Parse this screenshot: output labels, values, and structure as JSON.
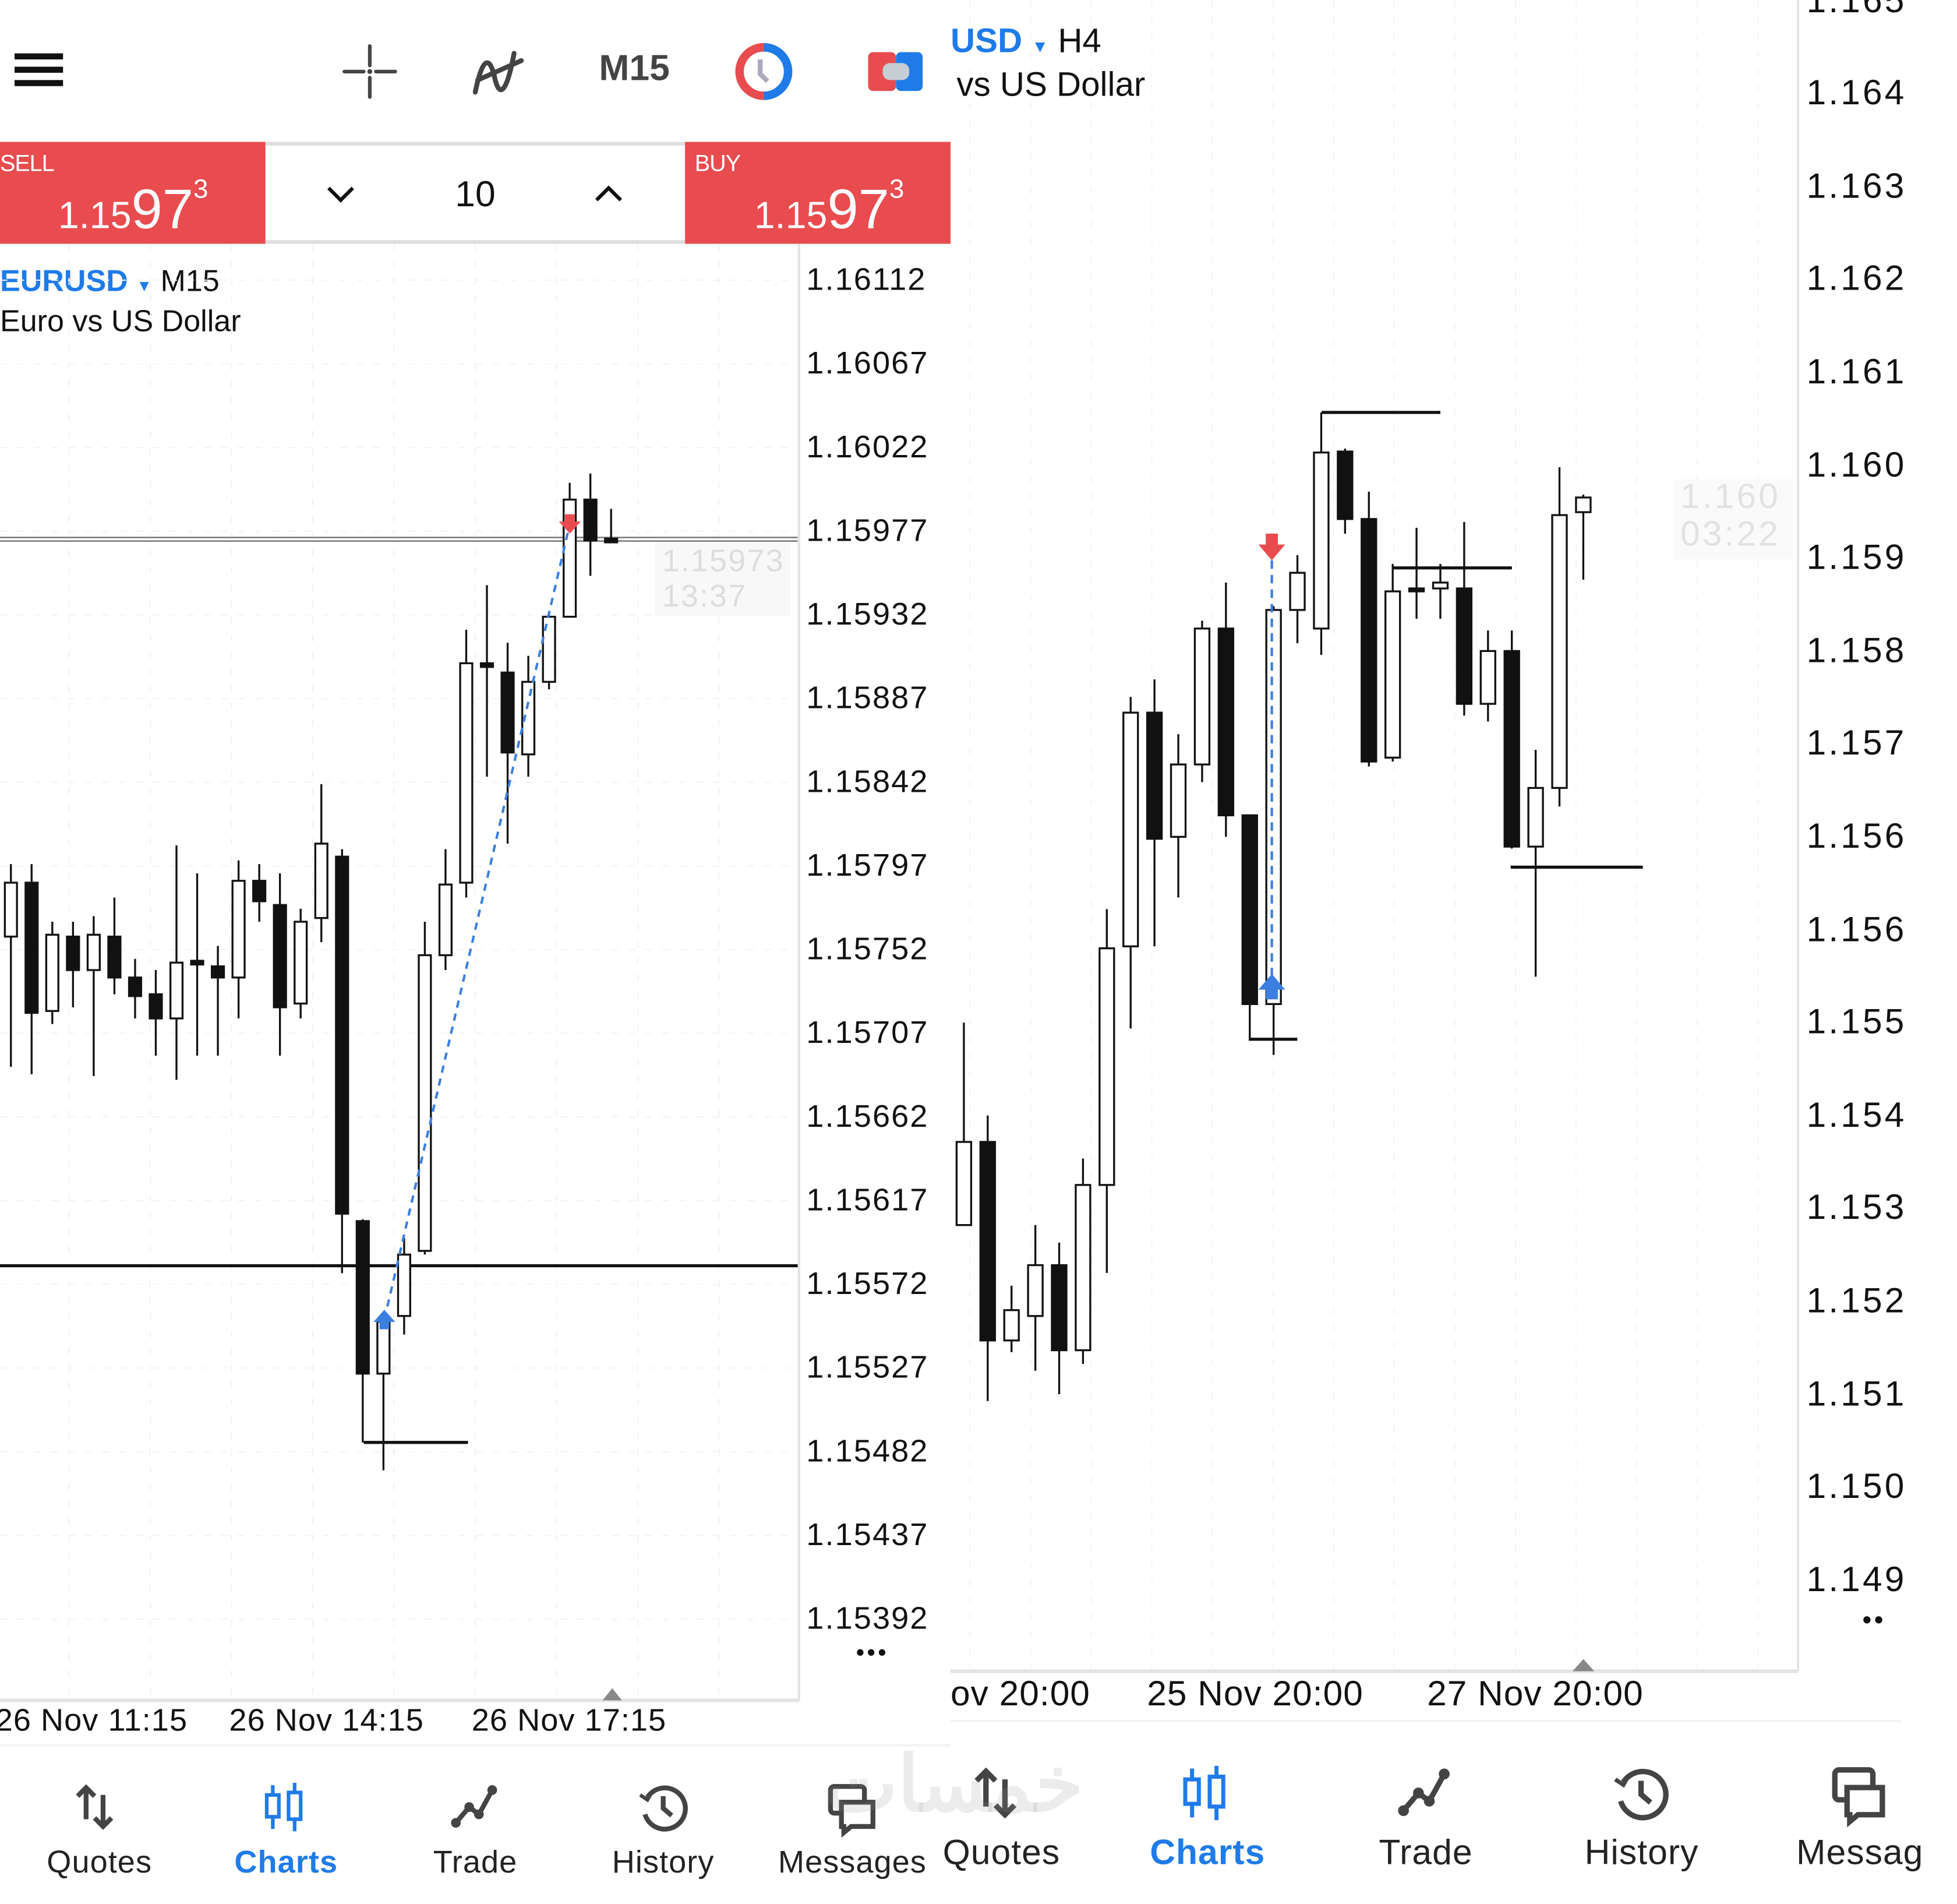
{
  "left": {
    "toolbar": {
      "menu_icon": "hamburger-menu-icon",
      "crosshair_icon": "crosshair-icon",
      "indicators_icon": "indicators-icon",
      "timeframe": "M15",
      "clock_icon": "trade-clock-icon",
      "oneclick_icon": "one-click-trading-icon"
    },
    "trade_panel": {
      "sell_label": "SELL",
      "sell_price_prefix": "1.15",
      "sell_price_big": "97",
      "sell_price_sup": "3",
      "buy_label": "BUY",
      "buy_price_prefix": "1.15",
      "buy_price_big": "97",
      "buy_price_sup": "3",
      "lot_value": "10"
    },
    "chart": {
      "symbol": "EURUSD",
      "timeframe": "M15",
      "description": "Euro vs US Dollar",
      "price_labels": [
        "1.16112",
        "1.16067",
        "1.16022",
        "1.15977",
        "1.15932",
        "1.15887",
        "1.15842",
        "1.15797",
        "1.15752",
        "1.15707",
        "1.15662",
        "1.15617",
        "1.15572",
        "1.15527",
        "1.15482",
        "1.15437",
        "1.15392"
      ],
      "current_price": "1.15973",
      "current_time": "13:37",
      "date_labels": [
        "26 Nov 11:15",
        "26 Nov 14:15",
        "26 Nov 17:15"
      ],
      "more_label": "•••",
      "levels": {
        "bid_line": 1.15973,
        "horizontal_line": 1.15582,
        "short_line": 1.15487
      },
      "candles_ohlc": [
        [
          1.15759,
          1.15798,
          1.15689,
          1.15788
        ],
        [
          1.15788,
          1.15798,
          1.15685,
          1.15718
        ],
        [
          1.15719,
          1.15767,
          1.15712,
          1.1576
        ],
        [
          1.15759,
          1.15767,
          1.15721,
          1.15741
        ],
        [
          1.15741,
          1.1577,
          1.15684,
          1.1576
        ],
        [
          1.15759,
          1.1578,
          1.15728,
          1.15737
        ],
        [
          1.15737,
          1.15747,
          1.15715,
          1.15727
        ],
        [
          1.15728,
          1.15741,
          1.15695,
          1.15715
        ],
        [
          1.15715,
          1.15808,
          1.15682,
          1.15745
        ],
        [
          1.15746,
          1.15793,
          1.15695,
          1.15744
        ],
        [
          1.15743,
          1.15754,
          1.15695,
          1.15737
        ],
        [
          1.15737,
          1.158,
          1.15715,
          1.15789
        ],
        [
          1.15789,
          1.15798,
          1.15767,
          1.15778
        ],
        [
          1.15776,
          1.15793,
          1.15695,
          1.15721
        ],
        [
          1.15723,
          1.15774,
          1.15715,
          1.15767
        ],
        [
          1.15769,
          1.15841,
          1.15756,
          1.15809
        ],
        [
          1.15802,
          1.15806,
          1.15578,
          1.1561
        ],
        [
          1.15606,
          1.15607,
          1.15487,
          1.15524
        ],
        [
          1.15524,
          1.15555,
          1.15472,
          1.15552
        ],
        [
          1.15555,
          1.15597,
          1.15545,
          1.15588
        ],
        [
          1.1559,
          1.15767,
          1.15588,
          1.15749
        ],
        [
          1.15749,
          1.15806,
          1.15741,
          1.15787
        ],
        [
          1.15788,
          1.15924,
          1.1578,
          1.15906
        ],
        [
          1.15906,
          1.15948,
          1.15845,
          1.15904
        ],
        [
          1.15901,
          1.15917,
          1.15809,
          1.15858
        ],
        [
          1.15857,
          1.1591,
          1.15845,
          1.15896
        ],
        [
          1.15896,
          1.15933,
          1.15892,
          1.15931
        ],
        [
          1.15931,
          1.16003,
          1.15931,
          1.15994
        ],
        [
          1.15994,
          1.16008,
          1.15953,
          1.15972
        ],
        [
          1.15973,
          1.15989,
          1.15971,
          1.15971
        ]
      ]
    },
    "nav": [
      {
        "label": "Quotes",
        "icon": "quotes-arrows-icon",
        "active": false
      },
      {
        "label": "Charts",
        "icon": "charts-candles-icon",
        "active": true
      },
      {
        "label": "Trade",
        "icon": "trade-line-icon",
        "active": false
      },
      {
        "label": "History",
        "icon": "history-clock-icon",
        "active": false
      },
      {
        "label": "Messages",
        "icon": "messages-bubbles-icon",
        "active": false
      }
    ]
  },
  "right": {
    "chart": {
      "symbol": "USD",
      "timeframe": "H4",
      "description": "vs US Dollar",
      "price_labels": [
        "1.165",
        "1.164",
        "1.163",
        "1.162",
        "1.161",
        "1.160",
        "1.159",
        "1.158",
        "1.157",
        "1.156",
        "1.156",
        "1.155",
        "1.154",
        "1.153",
        "1.152",
        "1.151",
        "1.150",
        "1.149"
      ],
      "current_price": "1.160",
      "current_time": "03:22",
      "date_labels": [
        "ov 20:00",
        "25 Nov 20:00",
        "27 Nov 20:00"
      ],
      "more_label": "••",
      "levels": {
        "line_top": 1.16125,
        "line_mid": 1.15966,
        "line_low": 1.1566,
        "line_bottom": 1.15484
      },
      "candles_ohlc": [
        [
          1.15294,
          1.15501,
          1.15294,
          1.15379
        ],
        [
          1.15379,
          1.15406,
          1.15114,
          1.15176
        ],
        [
          1.15176,
          1.15232,
          1.15164,
          1.15207
        ],
        [
          1.15201,
          1.15294,
          1.15145,
          1.15253
        ],
        [
          1.15253,
          1.15276,
          1.15121,
          1.15166
        ],
        [
          1.15166,
          1.15362,
          1.15152,
          1.15335
        ],
        [
          1.15335,
          1.15617,
          1.15245,
          1.15577
        ],
        [
          1.15579,
          1.15834,
          1.15495,
          1.15818
        ],
        [
          1.15818,
          1.15852,
          1.15579,
          1.15689
        ],
        [
          1.15691,
          1.15796,
          1.15629,
          1.15765
        ],
        [
          1.15765,
          1.15912,
          1.15747,
          1.15904
        ],
        [
          1.15904,
          1.15951,
          1.15691,
          1.15713
        ],
        [
          1.15713,
          1.15713,
          1.15483,
          1.1552
        ],
        [
          1.1552,
          1.15927,
          1.15468,
          1.15923
        ],
        [
          1.15923,
          1.15979,
          1.15889,
          1.15961
        ],
        [
          1.15904,
          1.16125,
          1.15877,
          1.16084
        ],
        [
          1.16085,
          1.16088,
          1.16001,
          1.16016
        ],
        [
          1.16016,
          1.16044,
          1.15763,
          1.15768
        ],
        [
          1.15772,
          1.1597,
          1.15768,
          1.15942
        ],
        [
          1.15945,
          1.16007,
          1.15914,
          1.15942
        ],
        [
          1.15945,
          1.1597,
          1.15914,
          1.15951
        ],
        [
          1.15945,
          1.16013,
          1.15815,
          1.15827
        ],
        [
          1.15827,
          1.15902,
          1.15809,
          1.15881
        ],
        [
          1.15881,
          1.15902,
          1.15679,
          1.15681
        ],
        [
          1.15681,
          1.1578,
          1.15548,
          1.15741
        ],
        [
          1.15741,
          1.16069,
          1.15722,
          1.1602
        ],
        [
          1.16023,
          1.16041,
          1.15954,
          1.16038
        ]
      ]
    },
    "nav": [
      {
        "label": "Quotes",
        "icon": "quotes-arrows-icon",
        "active": false
      },
      {
        "label": "Charts",
        "icon": "charts-candles-icon",
        "active": true
      },
      {
        "label": "Trade",
        "icon": "trade-line-icon",
        "active": false
      },
      {
        "label": "History",
        "icon": "history-clock-icon",
        "active": false
      },
      {
        "label": "Messag",
        "icon": "messages-bubbles-icon",
        "active": false
      }
    ]
  },
  "watermark": "خمسات",
  "colors": {
    "accent": "#1f7be8",
    "sell_buy": "#e84c4f",
    "candle_bear": "#111111",
    "candle_bull": "#ffffff",
    "trend_line": "#3b7fe0"
  }
}
